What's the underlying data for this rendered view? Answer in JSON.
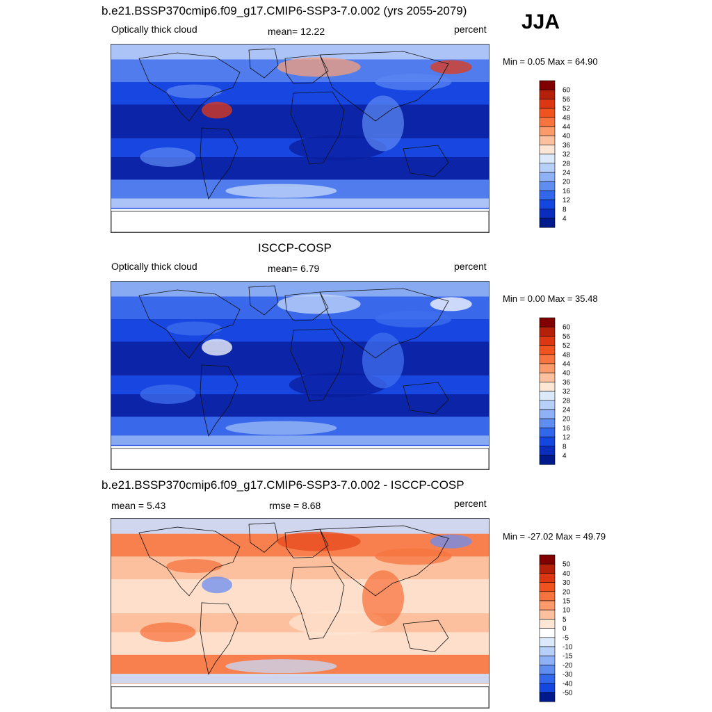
{
  "season": "JJA",
  "panels": [
    {
      "title": "b.e21.BSSP370cmip6.f09_g17.CMIP6-SSP3-7.0.002 (yrs 2055-2079)",
      "left_label": "Optically thick cloud",
      "center_label": "mean=  12.22",
      "right_label": "percent",
      "minmax": "Min =   0.05 Max =  64.90",
      "colorbar": {
        "labels": [
          "60",
          "56",
          "52",
          "48",
          "44",
          "40",
          "36",
          "32",
          "28",
          "24",
          "20",
          "16",
          "12",
          "8",
          "4"
        ],
        "colors": [
          "#800000",
          "#b4200a",
          "#dc3712",
          "#f0531e",
          "#f7743f",
          "#fb9a6a",
          "#fcc09e",
          "#fee6d5",
          "#dbe9fb",
          "#b7d0fa",
          "#8fb2f6",
          "#5f8df0",
          "#3267eb",
          "#1546e0",
          "#0a2dbe",
          "#001a8c"
        ]
      },
      "field_colors": {
        "deep": "#0a1e9c",
        "mid": "#1746e0",
        "light": "#5a86f0",
        "pale": "#c7d9fb",
        "warm": "#f7a07a",
        "hot": "#e23a16"
      }
    },
    {
      "title": "ISCCP-COSP",
      "left_label": "Optically thick cloud",
      "center_label": "mean=   6.79",
      "right_label": "percent",
      "minmax": "Min =   0.00 Max =  35.48",
      "colorbar": {
        "labels": [
          "60",
          "56",
          "52",
          "48",
          "44",
          "40",
          "36",
          "32",
          "28",
          "24",
          "20",
          "16",
          "12",
          "8",
          "4"
        ],
        "colors": [
          "#800000",
          "#b4200a",
          "#dc3712",
          "#f0531e",
          "#f7743f",
          "#fb9a6a",
          "#fcc09e",
          "#fee6d5",
          "#dbe9fb",
          "#b7d0fa",
          "#8fb2f6",
          "#5f8df0",
          "#3267eb",
          "#1546e0",
          "#0a2dbe",
          "#001a8c"
        ]
      },
      "field_colors": {
        "deep": "#0a1e9c",
        "mid": "#1746e0",
        "light": "#3f6fec",
        "pale": "#9cbcf6",
        "warm": "#c7d9fb",
        "hot": "#ffffff"
      }
    },
    {
      "title": "b.e21.BSSP370cmip6.f09_g17.CMIP6-SSP3-7.0.002 - ISCCP-COSP",
      "left_label": "mean =   5.43",
      "center_label": "rmse =   8.68",
      "right_label": "percent",
      "minmax": "Min = -27.02 Max =  49.79",
      "colorbar": {
        "labels": [
          "50",
          "40",
          "30",
          "20",
          "15",
          "10",
          "5",
          "0",
          "-5",
          "-10",
          "-15",
          "-20",
          "-30",
          "-40",
          "-50"
        ],
        "colors": [
          "#800000",
          "#b4200a",
          "#dc3712",
          "#f0531e",
          "#f7743f",
          "#fb9a6a",
          "#fcc09e",
          "#fee6d5",
          "#ffffff",
          "#dbe9fb",
          "#b7d0fa",
          "#8fb2f6",
          "#5f8df0",
          "#3267eb",
          "#1546e0",
          "#001a8c"
        ]
      },
      "field_colors": {
        "deep": "#fde4d2",
        "mid": "#fcc09e",
        "light": "#f7743f",
        "pale": "#c7d9fb",
        "warm": "#e84a1e",
        "hot": "#6b8ef0"
      }
    }
  ]
}
